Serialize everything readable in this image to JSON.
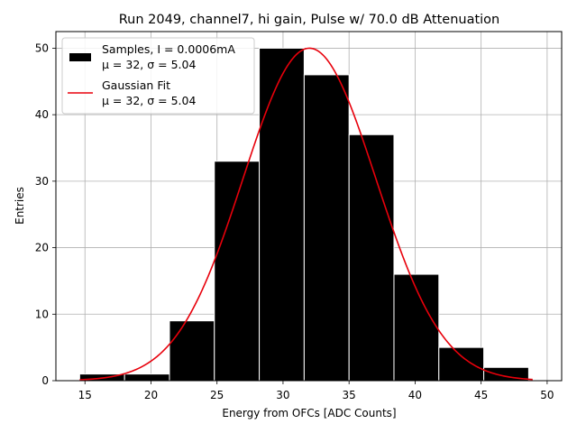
{
  "chart_data": {
    "type": "bar",
    "title": "Run 2049, channel7, hi gain, Pulse w/ 70.0 dB Attenuation",
    "xlabel": "Energy from OFCs [ADC Counts]",
    "ylabel": "Entries",
    "xlim": [
      12.8,
      51.1
    ],
    "ylim": [
      0,
      52.5
    ],
    "x_ticks": [
      15,
      20,
      25,
      30,
      35,
      40,
      45,
      50
    ],
    "y_ticks": [
      0,
      10,
      20,
      30,
      40,
      50
    ],
    "grid": true,
    "legend_position": "top-left",
    "histogram": {
      "name": "Samples, I = 0.0006mA",
      "color": "#000000",
      "bin_edges": [
        14.6,
        18.0,
        21.4,
        24.8,
        28.2,
        31.6,
        35.0,
        38.4,
        41.8,
        45.2,
        48.6
      ],
      "counts": [
        1,
        1,
        9,
        33,
        50,
        46,
        37,
        16,
        5,
        2
      ]
    },
    "fit": {
      "name": "Gaussian Fit",
      "color": "#e8000b",
      "mu": 32,
      "sigma": 5.04,
      "amplitude": 50,
      "x_range": [
        14.6,
        48.9
      ]
    },
    "legend": [
      {
        "line1": "Samples, I = 0.0006mA",
        "line2": "μ = 32, σ = 5.04"
      },
      {
        "line1": "Gaussian Fit",
        "line2": "μ = 32, σ = 5.04"
      }
    ]
  }
}
